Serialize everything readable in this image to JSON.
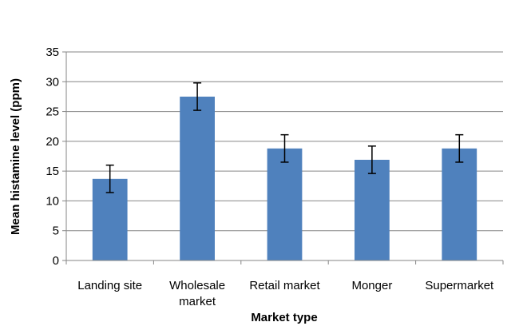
{
  "chart_data": {
    "type": "bar",
    "title": "",
    "xlabel": "Market type",
    "ylabel": "Mean histamine level (ppm)",
    "ylim": [
      0,
      35
    ],
    "yticks": [
      0,
      5,
      10,
      15,
      20,
      25,
      30,
      35
    ],
    "grid": true,
    "legend": "none",
    "categories": [
      [
        "Landing site"
      ],
      [
        "Wholesale",
        "market"
      ],
      [
        "Retail market"
      ],
      [
        "Monger"
      ],
      [
        "Supermarket"
      ]
    ],
    "values": [
      13.7,
      27.5,
      18.8,
      16.9,
      18.8
    ],
    "error": [
      2.3,
      2.3,
      2.3,
      2.3,
      2.3
    ],
    "bar_color": "#4f81bd",
    "grid_color": "#868686"
  }
}
